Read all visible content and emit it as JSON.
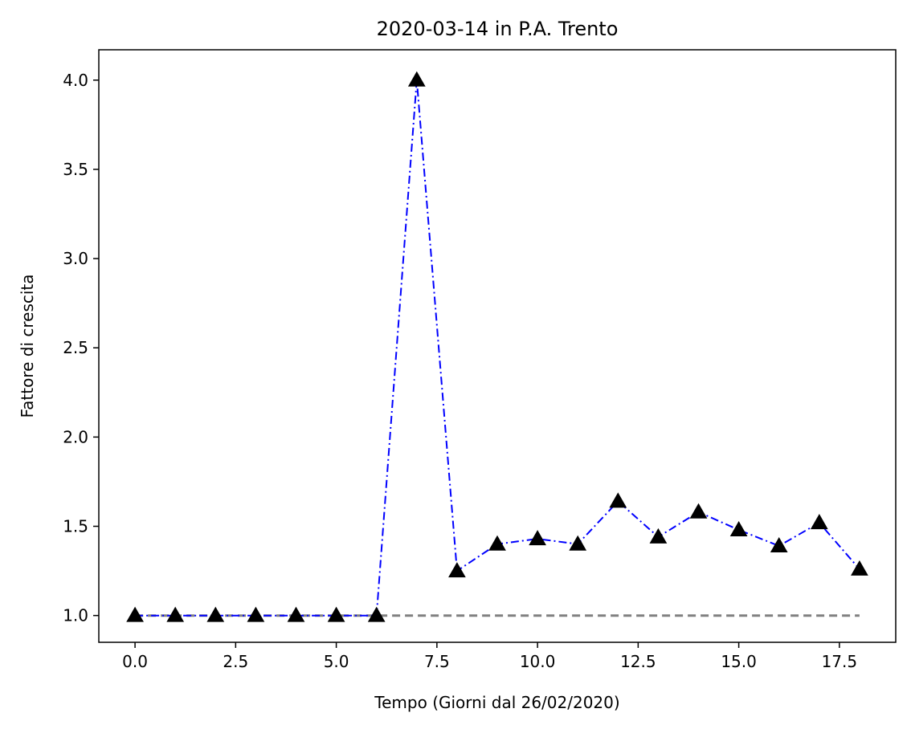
{
  "chart_data": {
    "type": "line",
    "title": "2020-03-14 in P.A. Trento",
    "xlabel": "Tempo (Giorni dal 26/02/2020)",
    "ylabel": "Fattore di crescita",
    "xlim": [
      -0.9,
      18.9
    ],
    "ylim": [
      0.85,
      4.17
    ],
    "xticks": [
      0,
      2.5,
      5,
      7.5,
      10,
      12.5,
      15,
      17.5
    ],
    "xtick_labels": [
      "0.0",
      "2.5",
      "5.0",
      "7.5",
      "10.0",
      "12.5",
      "15.0",
      "17.5"
    ],
    "yticks": [
      1.0,
      1.5,
      2.0,
      2.5,
      3.0,
      3.5,
      4.0
    ],
    "ytick_labels": [
      "1.0",
      "1.5",
      "2.0",
      "2.5",
      "3.0",
      "3.5",
      "4.0"
    ],
    "grid": false,
    "series": [
      {
        "style": "dash-dot",
        "color": "#0000ff",
        "marker": "triangle",
        "marker_color": "#000000",
        "x": [
          0,
          1,
          2,
          3,
          4,
          5,
          6,
          7,
          8,
          9,
          10,
          11,
          12,
          13,
          14,
          15,
          16,
          17,
          18
        ],
        "y": [
          1.0,
          1.0,
          1.0,
          1.0,
          1.0,
          1.0,
          1.0,
          4.0,
          1.25,
          1.4,
          1.43,
          1.4,
          1.64,
          1.44,
          1.58,
          1.48,
          1.39,
          1.52,
          1.26
        ]
      },
      {
        "style": "dashed",
        "color": "#808080",
        "x": [
          0,
          18
        ],
        "y": [
          1.0,
          1.0
        ]
      }
    ]
  }
}
